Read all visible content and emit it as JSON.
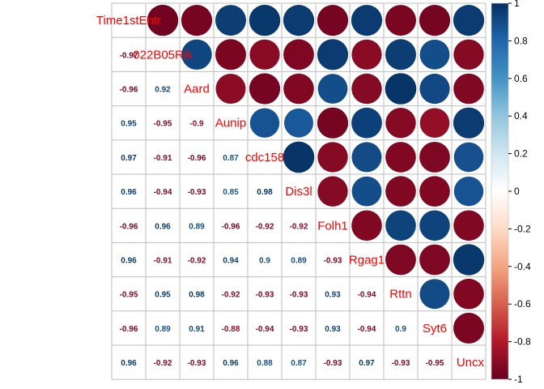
{
  "chart_data": {
    "type": "heatmap",
    "style": "corrplot-mixed",
    "variables": [
      "Time1stEntr",
      "022B05Rik",
      "Aard",
      "Aunip",
      "cdc158",
      "Dis3l",
      "Folh1",
      "Rgag1",
      "Rttn",
      "Syt6",
      "Uncx"
    ],
    "lower_labels": [
      [
        "-0.97"
      ],
      [
        "-0.96",
        "0.92"
      ],
      [
        "0.95",
        "-0.95",
        "-0.9"
      ],
      [
        "0.97",
        "-0.91",
        "-0.96",
        "0.87"
      ],
      [
        "0.96",
        "-0.94",
        "-0.93",
        "0.85",
        "0.98"
      ],
      [
        "-0.96",
        "0.96",
        "0.89",
        "-0.96",
        "-0.92",
        "-0.92"
      ],
      [
        "0.96",
        "-0.91",
        "-0.92",
        "0.94",
        "0.9",
        "0.89",
        "-0.93"
      ],
      [
        "-0.95",
        "0.95",
        "0.98",
        "-0.92",
        "-0.93",
        "-0.93",
        "0.93",
        "-0.94"
      ],
      [
        "-0.96",
        "0.89",
        "0.91",
        "-0.88",
        "-0.94",
        "-0.93",
        "0.93",
        "-0.94",
        "0.9"
      ],
      [
        "0.96",
        "-0.92",
        "-0.93",
        "0.96",
        "0.88",
        "0.87",
        "-0.93",
        "0.97",
        "-0.93",
        "-0.95"
      ]
    ],
    "colorbar": {
      "range": [
        -1,
        1
      ],
      "ticks": [
        "1",
        "0.8",
        "0.6",
        "0.4",
        "0.2",
        "0",
        "-0.2",
        "-0.4",
        "-0.6",
        "-0.8",
        "-1"
      ],
      "colors": [
        "#67001F",
        "#B2182B",
        "#D6604D",
        "#F4A582",
        "#FDDBC7",
        "#FFFFFF",
        "#D1E5F0",
        "#92C5DE",
        "#4393C3",
        "#2166AC",
        "#053061"
      ]
    },
    "label_color": "#FF0000",
    "grid": true,
    "colorbar_placement": "right"
  }
}
